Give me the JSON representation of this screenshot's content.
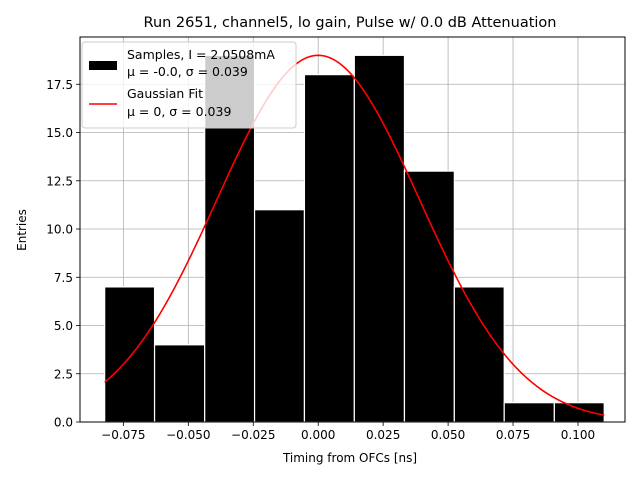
{
  "chart_data": {
    "type": "bar",
    "title": "Run 2651, channel5, lo gain, Pulse w/ 0.0 dB Attenuation",
    "xlabel": "Timing from OFCs [ns]",
    "ylabel": "Entries",
    "xlim": [
      -0.0917,
      0.1181
    ],
    "ylim": [
      0,
      19.95
    ],
    "grid": true,
    "legend_position": "top-left",
    "xticks": [
      -0.075,
      -0.05,
      -0.025,
      0.0,
      0.025,
      0.05,
      0.075,
      0.1
    ],
    "xtick_labels": [
      "−0.075",
      "−0.050",
      "−0.025",
      "0.000",
      "0.025",
      "0.050",
      "0.075",
      "0.100"
    ],
    "yticks": [
      0.0,
      2.5,
      5.0,
      7.5,
      10.0,
      12.5,
      15.0,
      17.5
    ],
    "ytick_labels": [
      "0.0",
      "2.5",
      "5.0",
      "7.5",
      "10.0",
      "12.5",
      "15.0",
      "17.5"
    ],
    "histogram": {
      "name": "Samples, I = 2.0508mA\nμ = -0.0, σ = 0.039",
      "color": "#000000",
      "bin_edges": [
        -0.0822,
        -0.063,
        -0.0437,
        -0.0245,
        -0.0053,
        0.0139,
        0.0332,
        0.0524,
        0.0716,
        0.0909,
        0.1101
      ],
      "counts": [
        7,
        4,
        19,
        11,
        18,
        19,
        13,
        7,
        1,
        1
      ]
    },
    "fit": {
      "name": "Gaussian Fit\nμ = 0, σ = 0.039",
      "color": "#ff0000",
      "mu": 0,
      "sigma": 0.039,
      "amplitude": 19.0,
      "x_range": [
        -0.0822,
        0.1101
      ]
    },
    "legend": [
      {
        "line1": "Samples, I = 2.0508mA",
        "line2": "μ = -0.0, σ = 0.039",
        "swatch": "patch",
        "color": "#000000"
      },
      {
        "line1": "Gaussian Fit",
        "line2": "μ = 0, σ = 0.039",
        "swatch": "line",
        "color": "#ff0000"
      }
    ]
  }
}
